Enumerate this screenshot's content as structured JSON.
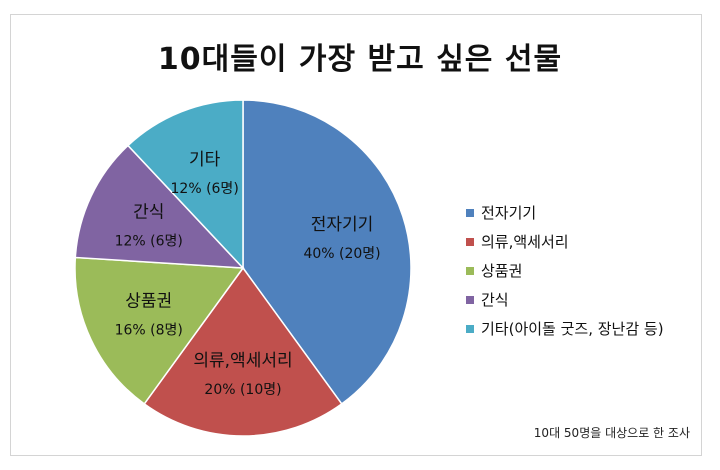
{
  "chart_data": {
    "type": "pie",
    "title": "10대들이 가장 받고 싶은 선물",
    "slices": [
      {
        "category": "전자기기",
        "label_name": "전자기기",
        "percent": 40,
        "count": 20,
        "value_label": "40% (20명)",
        "color": "#4F81BD"
      },
      {
        "category": "의류,액세서리",
        "label_name": "의류,액세서리",
        "percent": 20,
        "count": 10,
        "value_label": "20% (10명)",
        "color": "#C0504D"
      },
      {
        "category": "상품권",
        "label_name": "상품권",
        "percent": 16,
        "count": 8,
        "value_label": "16% (8명)",
        "color": "#9BBB59"
      },
      {
        "category": "간식",
        "label_name": "간식",
        "percent": 12,
        "count": 6,
        "value_label": "12% (6명)",
        "color": "#8064A2"
      },
      {
        "category": "기타(아이돌 굿즈, 장난감 등)",
        "label_name": "기타",
        "percent": 12,
        "count": 6,
        "value_label": "12% (6명)",
        "color": "#4BACC6"
      }
    ],
    "legend_placement": "right",
    "footnote": "10대 50명을 대상으로 한 조사"
  }
}
